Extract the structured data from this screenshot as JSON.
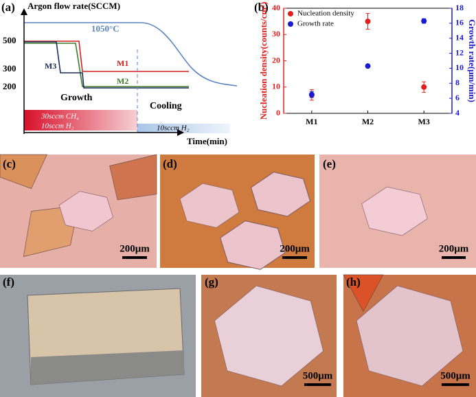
{
  "panel_labels": [
    "(a)",
    "(b)",
    "(c)",
    "(d)",
    "(e)",
    "(f)",
    "(g)",
    "(h)"
  ],
  "schematic": {
    "y_title": "Argon flow rate(SCCM)",
    "x_title": "Time(min)",
    "y_labels": [
      "500",
      "300",
      "200"
    ],
    "temperature": "1050°C",
    "lines": [
      "M1",
      "M2",
      "M3"
    ],
    "phases": [
      "Growth",
      "Cooling"
    ],
    "growth_gas": [
      "30sccm  CH₄",
      "10sccm   H₂"
    ],
    "cooling_gas": "10sccm   H₂"
  },
  "chart_data": {
    "type": "scatter",
    "categories": [
      "M1",
      "M2",
      "M3"
    ],
    "y_label": "Nucleation density(counts/cm²)",
    "y2_label": "Growth rate(μm/min)",
    "series": [
      {
        "name": "Nucleation density",
        "color": "#e0201e",
        "values": [
          7,
          35,
          10
        ],
        "errors": [
          2,
          3,
          2
        ]
      },
      {
        "name": "Growth rate",
        "color": "#1a1ad0",
        "axis": "y2",
        "values": [
          6.5,
          10.3,
          16.3
        ],
        "errors": [
          0.4,
          0.2,
          0.3
        ]
      }
    ],
    "ylim": [
      0,
      40
    ],
    "yticks": [
      0,
      10,
      20,
      30,
      40
    ],
    "y2lim": [
      4,
      18
    ],
    "y2ticks": [
      4,
      6,
      8,
      10,
      12,
      14,
      16,
      18
    ]
  },
  "scale_bars": [
    "200μm",
    "200μm",
    "200μm",
    "500μm",
    "500μm"
  ]
}
